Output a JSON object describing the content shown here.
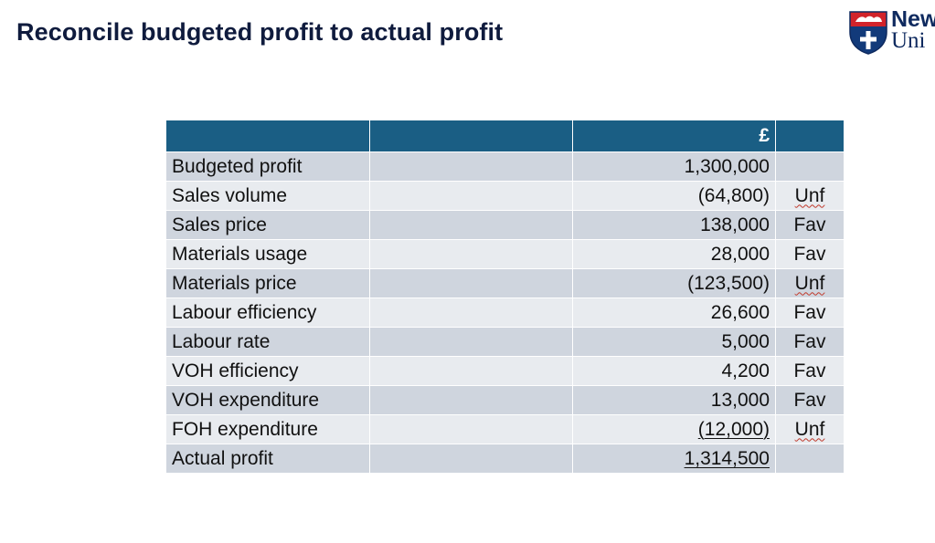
{
  "slide": {
    "title": "Reconcile budgeted profit to actual profit",
    "logo": {
      "line1": "New",
      "line2": "Uni"
    }
  },
  "colors": {
    "header_bg": "#1a5e84",
    "row_dark": "#cfd5de",
    "row_light": "#e8ebef",
    "title_color": "#0f1b3d"
  },
  "table": {
    "header": [
      "",
      "",
      "£",
      ""
    ],
    "rows": [
      {
        "label": "Budgeted profit",
        "amount": "1,300,000",
        "flag": ""
      },
      {
        "label": "Sales volume",
        "amount": "(64,800)",
        "flag": "Unf"
      },
      {
        "label": "Sales price",
        "amount": "138,000",
        "flag": "Fav"
      },
      {
        "label": "Materials usage",
        "amount": "28,000",
        "flag": "Fav"
      },
      {
        "label": "Materials price",
        "amount": "(123,500)",
        "flag": "Unf"
      },
      {
        "label": "Labour efficiency",
        "amount": "26,600",
        "flag": "Fav"
      },
      {
        "label": "Labour rate",
        "amount": "5,000",
        "flag": "Fav"
      },
      {
        "label": "VOH efficiency",
        "amount": "4,200",
        "flag": "Fav"
      },
      {
        "label": "VOH expenditure",
        "amount": "13,000",
        "flag": "Fav"
      },
      {
        "label": "FOH expenditure",
        "amount": "(12,000)",
        "flag": "Unf"
      },
      {
        "label": "Actual profit",
        "amount": "1,314,500",
        "flag": ""
      }
    ]
  }
}
